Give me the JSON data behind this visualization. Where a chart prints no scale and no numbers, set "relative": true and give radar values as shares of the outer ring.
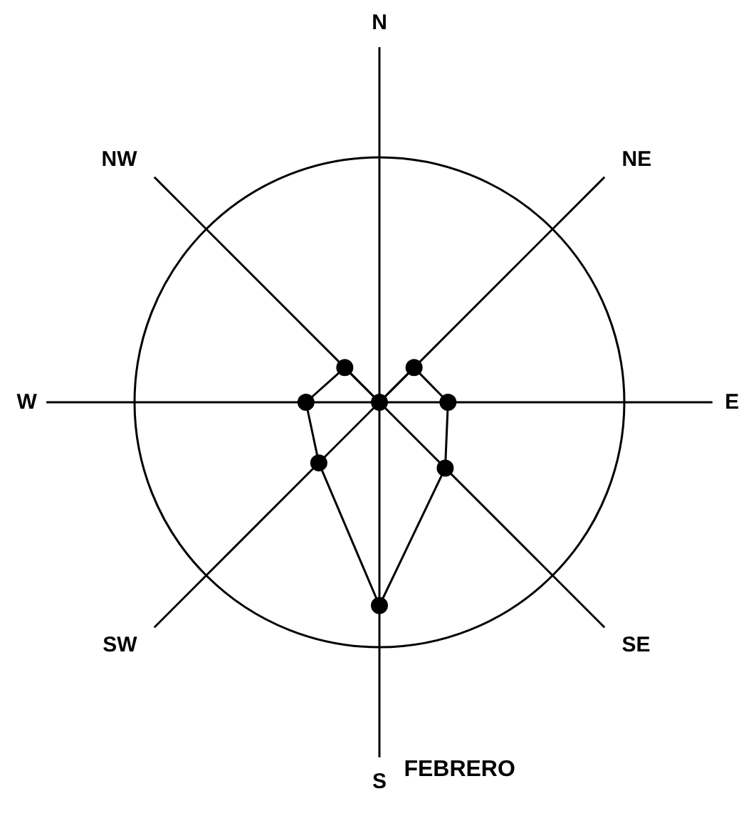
{
  "chart_data": {
    "type": "radar",
    "title": "FEBRERO",
    "relative": true,
    "categories": [
      "N",
      "NE",
      "E",
      "SE",
      "S",
      "SW",
      "W",
      "NW"
    ],
    "marker": "circle",
    "series": [
      {
        "color": "#000000",
        "values": [
          0,
          0.2,
          0.28,
          0.38,
          0.83,
          0.35,
          0.3,
          0.2
        ]
      }
    ]
  }
}
